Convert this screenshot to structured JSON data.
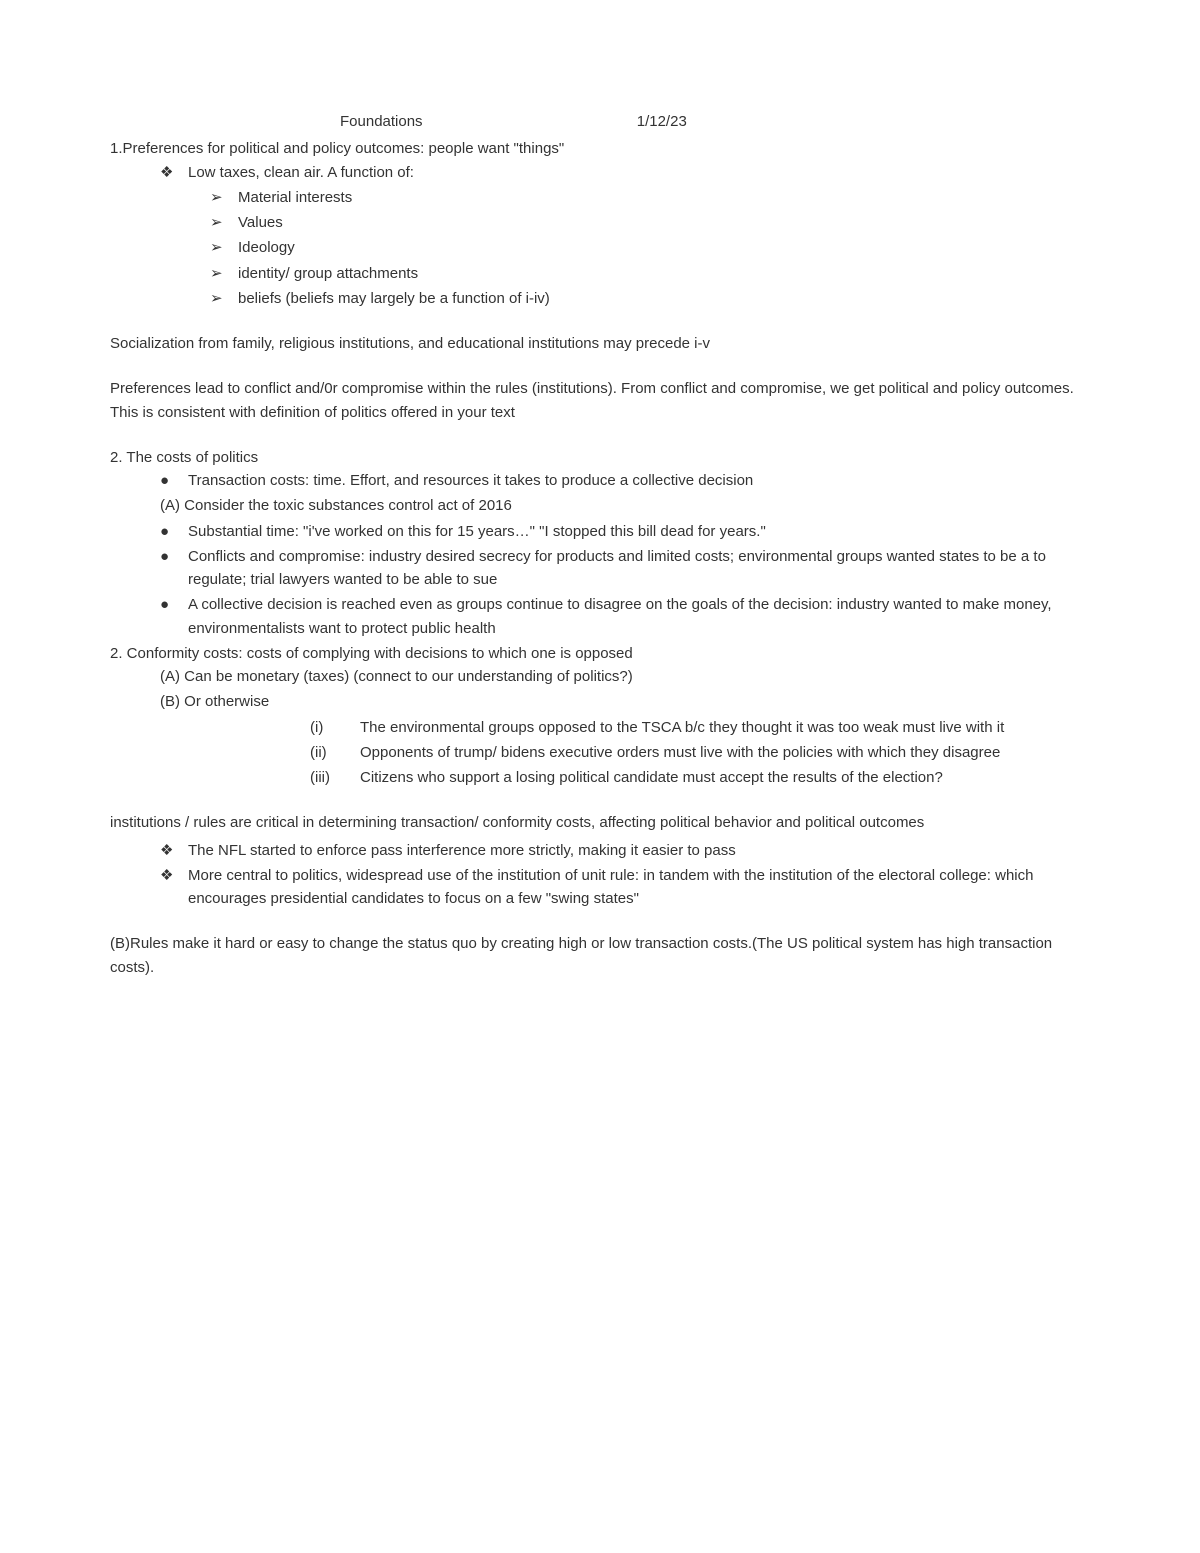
{
  "header": {
    "title": "Foundations",
    "date": "1/12/23"
  },
  "line1": "1.Preferences for political and policy outcomes: people want \"things\"",
  "diamond1": "Low taxes, clean air. A function of:",
  "arrows": {
    "a1": "Material interests",
    "a2": "Values",
    "a3": "Ideology",
    "a4": "identity/ group attachments",
    "a5": "beliefs (beliefs may largely be a function of i-iv)"
  },
  "para1": "Socialization from family, religious institutions, and educational institutions may precede i-v",
  "para2": "Preferences lead to conflict and/0r compromise within the rules (institutions). From conflict and compromise, we get political and policy outcomes. This is consistent with definition of politics offered in your text",
  "sec2_title": "2. The costs of politics",
  "sec2": {
    "b1": "Transaction costs: time. Effort, and resources it takes to produce a collective decision",
    "a": "(A) Consider the toxic substances control act of 2016",
    "b2": "Substantial time: \"i've worked on this for 15 years…\" \"I stopped this bill dead for years.\"",
    "b3": "Conflicts and compromise: industry desired secrecy for products and limited costs; environmental groups wanted states to be a to regulate; trial lawyers wanted to be able to sue",
    "b4": "A collective decision is reached even as groups continue to disagree on the goals of the decision: industry wanted to make money, environmentalists want to protect public health"
  },
  "sec2b_title": "2. Conformity costs: costs of complying with decisions to which one is opposed",
  "sec2b": {
    "a": "(A) Can be monetary (taxes) (connect to our understanding of politics?)",
    "b": "(B) Or otherwise",
    "i": "The environmental groups opposed to the TSCA b/c they thought it was too weak must live with it",
    "ii": "Opponents of trump/ bidens executive orders must live with the policies with which they disagree",
    "iii": "Citizens who support a losing political candidate must accept the results of the election?"
  },
  "para3": "institutions / rules are critical in determining transaction/ conformity costs, affecting political behavior and political outcomes",
  "diamond_bottom": {
    "d1": "The NFL started to enforce pass interference more strictly, making it easier to pass",
    "d2": "More central to politics, widespread use of the institution of unit rule: in tandem with the institution of the electoral college: which encourages presidential candidates to focus on a few \"swing states\""
  },
  "para4": "(B)Rules make it hard or easy to change the status quo by creating high or low transaction costs.(The US political system has high transaction costs).",
  "glyphs": {
    "diamond": "❖",
    "arrow": "➢",
    "disc": "●",
    "i": "(i)",
    "ii": "(ii)",
    "iii": "(iii)"
  }
}
